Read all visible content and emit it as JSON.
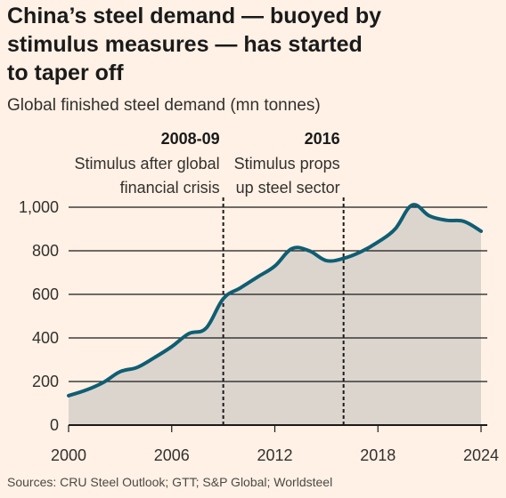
{
  "header": {
    "title_line1": "China’s steel demand — buoyed by",
    "title_line2": "stimulus measures — has started",
    "title_line3": "to taper off",
    "subtitle": "Global finished steel demand (mn tonnes)"
  },
  "footer": {
    "source": "Sources: CRU Steel Outlook; GTT; S&P Global; Worldsteel"
  },
  "colors": {
    "background": "#fff1e5",
    "line": "#0f5e73",
    "area": "#dcd5ce",
    "gridline": "#1a1a1a",
    "annotation_line": "#1a1a1a"
  },
  "chart_data": {
    "type": "area",
    "title": "China’s steel demand — buoyed by stimulus measures — has started to taper off",
    "subtitle": "Global finished steel demand (mn tonnes)",
    "xlabel": "",
    "ylabel": "",
    "xlim": [
      2000,
      2024
    ],
    "ylim": [
      0,
      1000
    ],
    "x_ticks": [
      2000,
      2006,
      2012,
      2018,
      2024
    ],
    "x_tick_labels": [
      "2000",
      "2006",
      "2012",
      "2018",
      "2024"
    ],
    "y_ticks": [
      0,
      200,
      400,
      600,
      800,
      1000
    ],
    "y_tick_labels": [
      "0",
      "200",
      "400",
      "600",
      "800",
      "1,000"
    ],
    "grid": true,
    "legend": "none",
    "series": [
      {
        "x": [
          2000,
          2001,
          2002,
          2003,
          2004,
          2005,
          2006,
          2007,
          2008,
          2009,
          2010,
          2011,
          2012,
          2013,
          2014,
          2015,
          2016,
          2017,
          2018,
          2019,
          2020,
          2021,
          2022,
          2023,
          2024
        ],
        "values": [
          135,
          160,
          195,
          245,
          265,
          310,
          360,
          420,
          445,
          580,
          630,
          680,
          730,
          810,
          800,
          755,
          765,
          795,
          840,
          900,
          1010,
          960,
          940,
          935,
          890
        ]
      }
    ],
    "annotations": [
      {
        "x": 2009,
        "title": "2008-09",
        "line1": "Stimulus after global",
        "line2": "financial crisis"
      },
      {
        "x": 2016,
        "title": "2016",
        "line1": "Stimulus props",
        "line2": "up steel sector"
      }
    ]
  }
}
